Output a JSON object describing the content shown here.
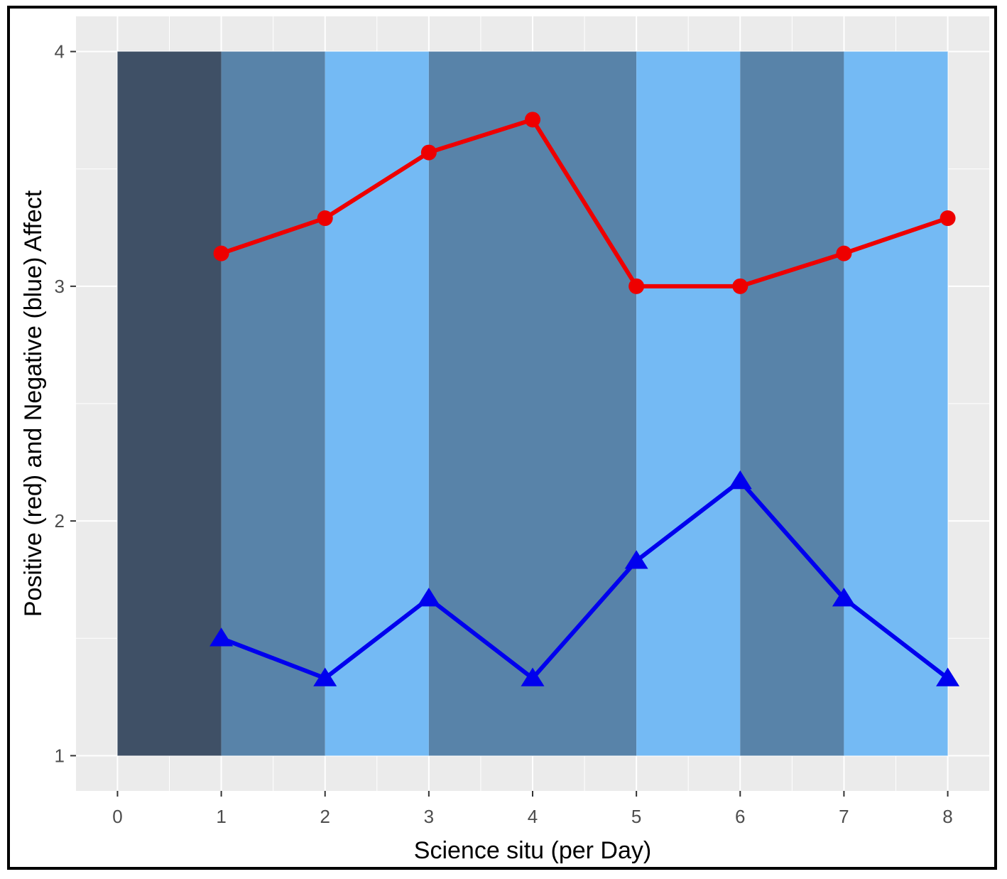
{
  "chart_data": {
    "type": "line",
    "title": "",
    "xlabel": "Science situ (per Day)",
    "ylabel": "Positive (red) and Negative (blue) Affect",
    "xlim": [
      -0.4,
      8.4
    ],
    "ylim": [
      0.85,
      4.15
    ],
    "x_ticks": [
      0,
      1,
      2,
      3,
      4,
      5,
      6,
      7,
      8
    ],
    "y_ticks": [
      1,
      2,
      3,
      4
    ],
    "grid": true,
    "legend": "none",
    "background_bands": [
      {
        "x_start": 0,
        "x_end": 1,
        "color": "#3f5066"
      },
      {
        "x_start": 1,
        "x_end": 2,
        "color": "#5883a9"
      },
      {
        "x_start": 2,
        "x_end": 3,
        "color": "#74baf4"
      },
      {
        "x_start": 3,
        "x_end": 5,
        "color": "#5883a9"
      },
      {
        "x_start": 5,
        "x_end": 6,
        "color": "#74baf4"
      },
      {
        "x_start": 6,
        "x_end": 7,
        "color": "#5883a9"
      },
      {
        "x_start": 7,
        "x_end": 8,
        "color": "#74baf4"
      }
    ],
    "band_y_range": [
      1,
      4
    ],
    "series": [
      {
        "color": "#ee0000",
        "marker": "circle",
        "x": [
          1,
          2,
          3,
          4,
          5,
          6,
          7,
          8
        ],
        "values": [
          3.14,
          3.29,
          3.57,
          3.71,
          3.0,
          3.0,
          3.14,
          3.29
        ]
      },
      {
        "color": "#0000ee",
        "marker": "triangle",
        "x": [
          1,
          2,
          3,
          4,
          5,
          6,
          7,
          8
        ],
        "values": [
          1.5,
          1.33,
          1.67,
          1.33,
          1.83,
          2.17,
          1.67,
          1.33
        ]
      }
    ]
  }
}
